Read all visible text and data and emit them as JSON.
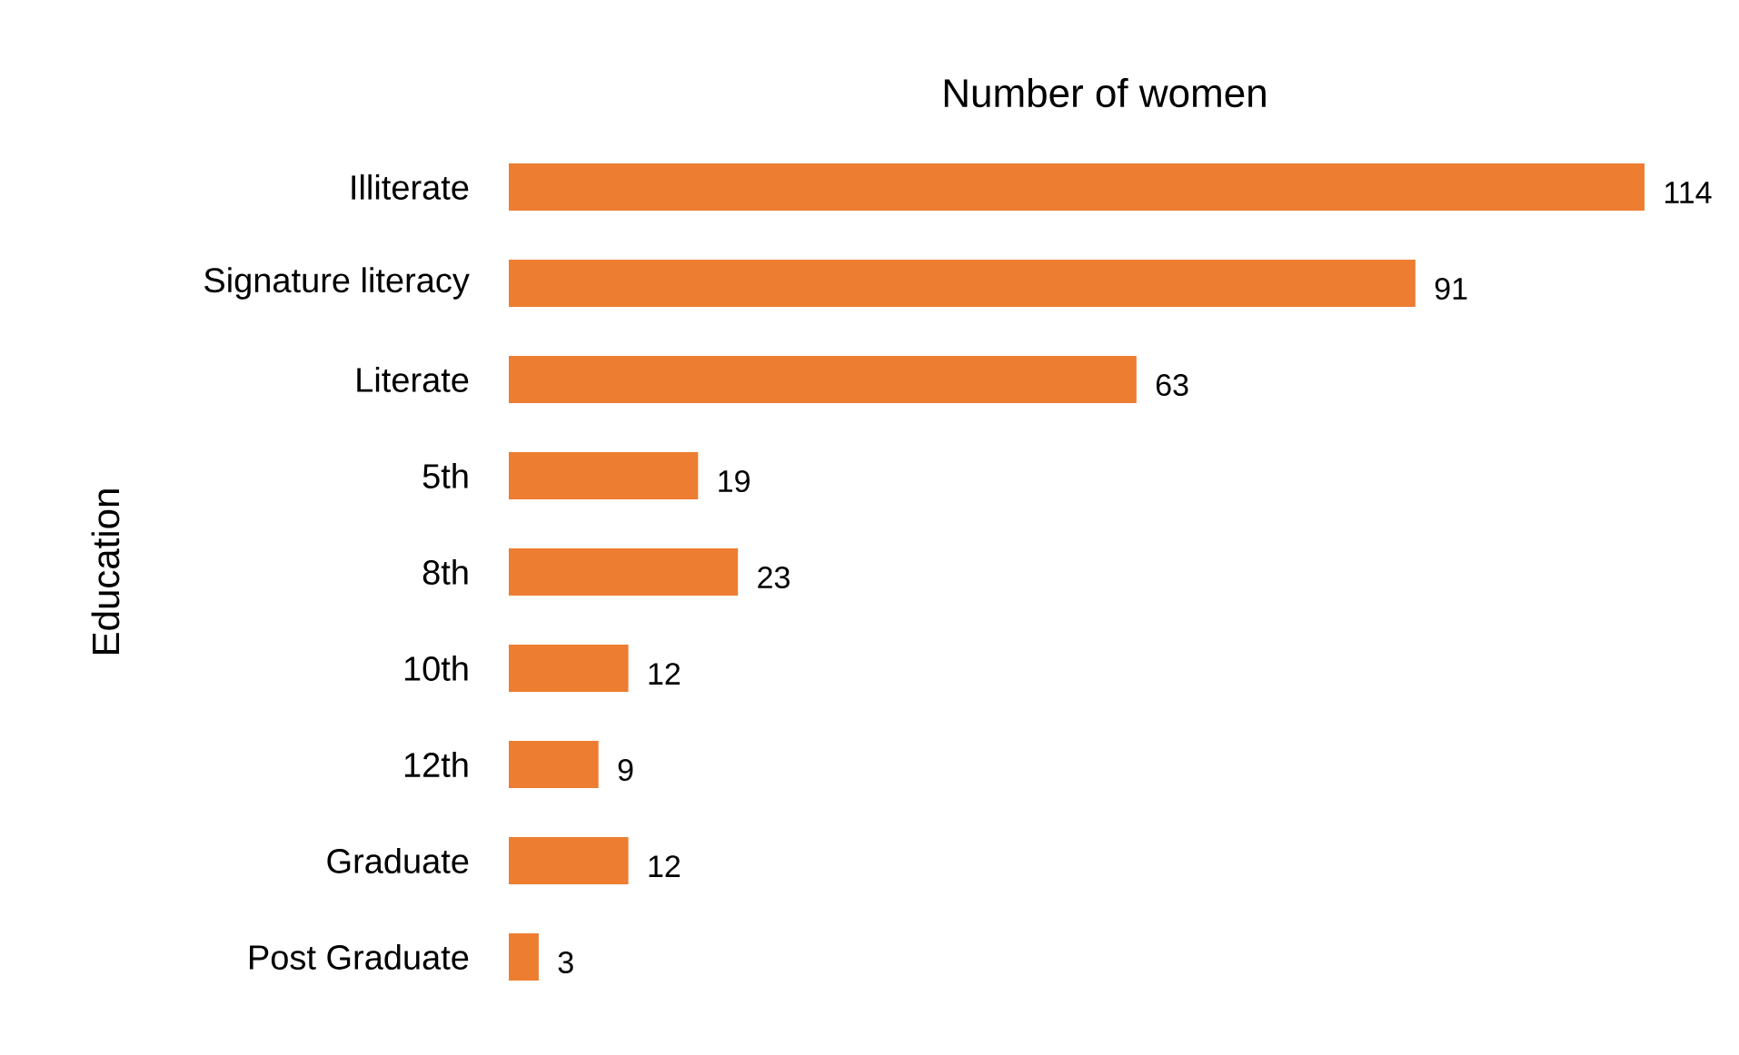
{
  "chart_data": {
    "type": "bar",
    "orientation": "horizontal",
    "title": "Number of women",
    "ylabel": "Education",
    "categories": [
      "Illiterate",
      "Signature literacy",
      "Literate",
      "5th",
      "8th",
      "10th",
      "12th",
      "Graduate",
      "Post Graduate"
    ],
    "values": [
      114,
      91,
      63,
      19,
      23,
      12,
      9,
      12,
      3
    ],
    "color": "#ed7d31",
    "data_labels": true,
    "tick_labels": "y"
  }
}
